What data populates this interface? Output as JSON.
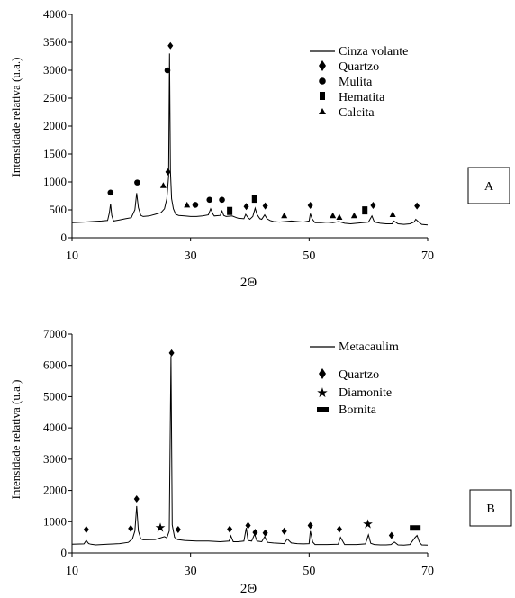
{
  "chart_data": [
    {
      "type": "line",
      "panel_label": "A",
      "xlabel": "2Θ",
      "ylabel": "Intensidade relativa (u.a.)",
      "xlim": [
        10,
        70
      ],
      "ylim": [
        0,
        4000
      ],
      "xticks": [
        10,
        30,
        50,
        70
      ],
      "yticks": [
        0,
        500,
        1000,
        1500,
        2000,
        2500,
        3000,
        3500,
        4000
      ],
      "series": [
        {
          "name": "Cinza volante",
          "x": [
            10,
            12,
            14,
            15,
            16,
            16.3,
            16.5,
            16.7,
            17,
            18,
            19,
            20,
            20.6,
            20.9,
            21.2,
            21.6,
            22,
            23,
            24,
            25,
            25.6,
            26,
            26.3,
            26.45,
            26.6,
            26.8,
            27.1,
            27.5,
            28,
            29,
            30,
            31,
            32,
            33,
            33.4,
            33.8,
            34,
            35,
            35.3,
            35.6,
            36,
            37,
            38,
            39,
            39.3,
            39.7,
            40,
            40.5,
            40.9,
            41.2,
            41.7,
            42,
            42.5,
            42.9,
            43.4,
            44,
            45,
            46,
            47,
            48,
            49,
            50,
            50.2,
            50.5,
            51,
            52,
            53,
            54,
            55,
            56,
            57,
            58,
            59,
            60,
            60.6,
            61,
            62,
            63,
            64,
            64.3,
            65,
            66,
            67,
            67.7,
            68,
            68.5,
            69,
            70
          ],
          "y": [
            270,
            280,
            295,
            300,
            310,
            450,
            610,
            400,
            300,
            320,
            340,
            360,
            500,
            800,
            540,
            400,
            380,
            390,
            420,
            450,
            520,
            700,
            1100,
            3300,
            1200,
            700,
            520,
            420,
            400,
            390,
            380,
            380,
            390,
            410,
            520,
            420,
            390,
            400,
            480,
            400,
            380,
            390,
            350,
            340,
            420,
            360,
            330,
            380,
            530,
            420,
            340,
            330,
            410,
            340,
            310,
            290,
            280,
            290,
            300,
            290,
            280,
            300,
            430,
            340,
            270,
            270,
            280,
            270,
            290,
            260,
            250,
            260,
            270,
            280,
            390,
            280,
            260,
            250,
            250,
            300,
            250,
            240,
            250,
            280,
            330,
            280,
            240,
            230
          ]
        }
      ],
      "markers": [
        {
          "name": "Quartzo",
          "symbol": "diamond",
          "points": [
            [
              26.6,
              3440
            ],
            [
              26.2,
              1180
            ],
            [
              39.4,
              560
            ],
            [
              42.6,
              570
            ],
            [
              50.2,
              580
            ],
            [
              60.8,
              580
            ],
            [
              68.2,
              570
            ]
          ]
        },
        {
          "name": "Mulita",
          "symbol": "circle",
          "points": [
            [
              16.5,
              810
            ],
            [
              21.0,
              990
            ],
            [
              26.1,
              3000
            ],
            [
              33.2,
              680
            ],
            [
              35.3,
              680
            ],
            [
              30.8,
              590
            ]
          ]
        },
        {
          "name": "Hematita",
          "symbol": "square",
          "points": [
            [
              36.6,
              480
            ],
            [
              40.8,
              700
            ],
            [
              59.4,
              490
            ]
          ]
        },
        {
          "name": "Calcita",
          "symbol": "triangle",
          "points": [
            [
              25.4,
              940
            ],
            [
              29.4,
              590
            ],
            [
              45.8,
              400
            ],
            [
              54.0,
              400
            ],
            [
              55.1,
              370
            ],
            [
              57.6,
              400
            ],
            [
              64.1,
              420
            ]
          ]
        }
      ]
    },
    {
      "type": "line",
      "panel_label": "B",
      "xlabel": "2Θ",
      "ylabel": "Intensidade relativa (u.a.)",
      "xlim": [
        10,
        70
      ],
      "ylim": [
        0,
        7000
      ],
      "xticks": [
        10,
        30,
        50,
        70
      ],
      "yticks": [
        0,
        1000,
        2000,
        3000,
        4000,
        5000,
        6000,
        7000
      ],
      "series": [
        {
          "name": "Metacaulim",
          "x": [
            10,
            12,
            12.4,
            12.8,
            13.2,
            14,
            16,
            18,
            19.5,
            20.2,
            20.6,
            20.9,
            21.2,
            21.6,
            22,
            24,
            25.6,
            26,
            26.4,
            26.7,
            26.9,
            27.3,
            27.8,
            29,
            31,
            33,
            35,
            36.5,
            36.8,
            37.2,
            38,
            39,
            39.4,
            39.7,
            40.3,
            40.8,
            41.2,
            42,
            42.5,
            43,
            44,
            45,
            45.8,
            46.3,
            47,
            48,
            49,
            50,
            50.2,
            50.6,
            51,
            53,
            54.9,
            55.3,
            56,
            58,
            59.5,
            60,
            60.4,
            61,
            62,
            63,
            63.8,
            64.4,
            65,
            66,
            67,
            67.9,
            68.2,
            68.6,
            69,
            70
          ],
          "y": [
            280,
            290,
            400,
            300,
            280,
            260,
            280,
            300,
            340,
            450,
            700,
            1500,
            700,
            450,
            420,
            430,
            520,
            480,
            700,
            6300,
            900,
            500,
            430,
            400,
            380,
            380,
            360,
            380,
            550,
            360,
            360,
            380,
            800,
            400,
            380,
            600,
            380,
            360,
            520,
            340,
            320,
            310,
            300,
            450,
            320,
            300,
            290,
            300,
            700,
            350,
            270,
            270,
            280,
            500,
            270,
            270,
            290,
            580,
            310,
            270,
            260,
            260,
            270,
            350,
            260,
            250,
            270,
            500,
            560,
            350,
            260,
            250
          ]
        }
      ],
      "markers": [
        {
          "name": "Quartzo",
          "symbol": "diamond",
          "points": [
            [
              12.4,
              750
            ],
            [
              19.9,
              780
            ],
            [
              20.9,
              1730
            ],
            [
              26.8,
              6400
            ],
            [
              27.9,
              750
            ],
            [
              36.6,
              760
            ],
            [
              39.7,
              880
            ],
            [
              40.9,
              660
            ],
            [
              42.6,
              640
            ],
            [
              45.8,
              700
            ],
            [
              50.2,
              880
            ],
            [
              55.1,
              760
            ],
            [
              63.9,
              560
            ]
          ]
        },
        {
          "name": "Diamonite",
          "symbol": "star",
          "points": [
            [
              24.9,
              820
            ],
            [
              59.9,
              930
            ]
          ]
        },
        {
          "name": "Bornita",
          "symbol": "bar",
          "points": [
            [
              67.9,
              800
            ]
          ]
        }
      ]
    }
  ]
}
